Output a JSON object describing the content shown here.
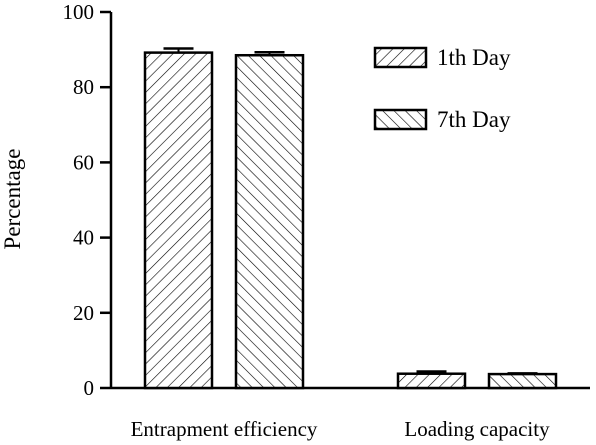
{
  "chart_data": {
    "type": "bar",
    "categories": [
      "Entrapment efficiency",
      "Loading capacity"
    ],
    "series": [
      {
        "name": "1th Day",
        "values": [
          89.2,
          3.8
        ],
        "errors": [
          1.1,
          0.6
        ],
        "pattern": "forward-diagonal-hatch"
      },
      {
        "name": "7th Day",
        "values": [
          88.5,
          3.7
        ],
        "errors": [
          0.8,
          0.2
        ],
        "pattern": "back-diagonal-hatch"
      }
    ],
    "ylabel": "Percentage",
    "xlabel": "",
    "ylim": [
      0,
      100
    ],
    "yticks": [
      0,
      20,
      40,
      60,
      80,
      100
    ],
    "grid": false,
    "legend_position": "top-right",
    "bar_fill": "#ffffff",
    "stroke_color": "#000000"
  }
}
